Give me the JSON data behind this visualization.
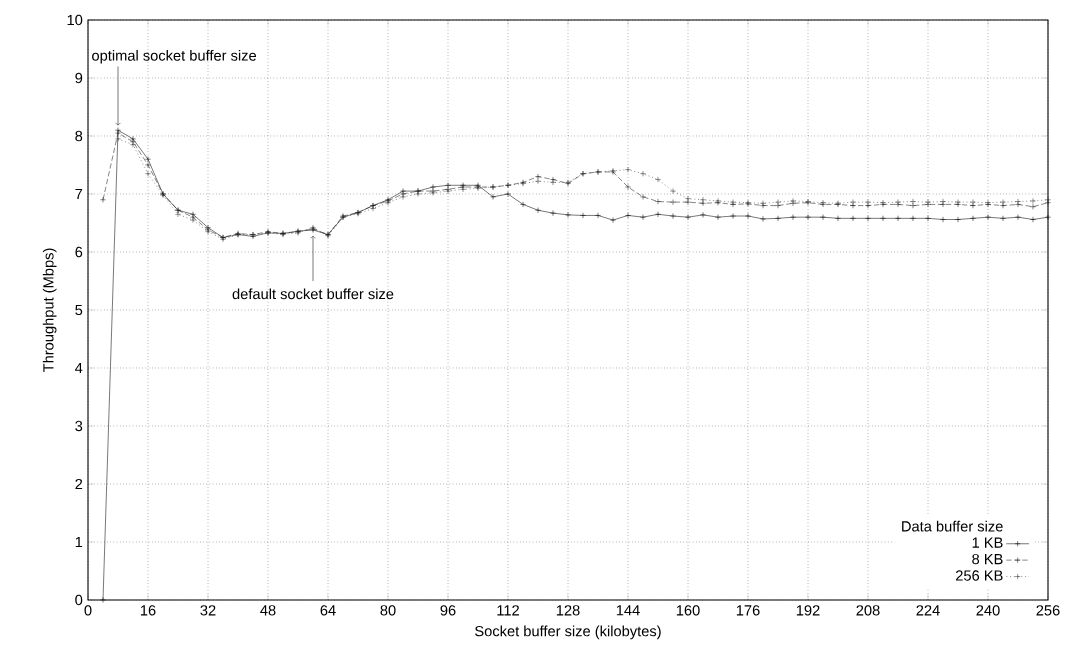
{
  "chart_data": {
    "type": "line",
    "xlabel": "Socket buffer size (kilobytes)",
    "ylabel": "Throughput (Mbps)",
    "legend_title": "Data buffer size",
    "x": [
      4,
      8,
      12,
      16,
      20,
      24,
      28,
      32,
      36,
      40,
      44,
      48,
      52,
      56,
      60,
      64,
      68,
      72,
      76,
      80,
      84,
      88,
      92,
      96,
      100,
      104,
      108,
      112,
      116,
      120,
      124,
      128,
      132,
      136,
      140,
      144,
      148,
      152,
      156,
      160,
      164,
      168,
      172,
      176,
      180,
      184,
      188,
      192,
      196,
      200,
      204,
      208,
      212,
      216,
      220,
      224,
      228,
      232,
      236,
      240,
      244,
      248,
      252,
      256
    ],
    "series": [
      {
        "name": "1 KB",
        "color": "#000000",
        "line_style": "solid",
        "values": [
          0,
          8.1,
          7.95,
          7.6,
          7.0,
          6.72,
          6.65,
          6.42,
          6.25,
          6.3,
          6.27,
          6.33,
          6.32,
          6.36,
          6.38,
          6.3,
          6.6,
          6.68,
          6.8,
          6.9,
          7.05,
          7.05,
          7.12,
          7.15,
          7.15,
          7.15,
          6.95,
          7.0,
          6.82,
          6.72,
          6.67,
          6.64,
          6.63,
          6.63,
          6.55,
          6.63,
          6.6,
          6.65,
          6.62,
          6.6,
          6.64,
          6.6,
          6.62,
          6.62,
          6.57,
          6.58,
          6.6,
          6.6,
          6.6,
          6.58,
          6.58,
          6.58,
          6.58,
          6.58,
          6.58,
          6.58,
          6.56,
          6.56,
          6.58,
          6.6,
          6.58,
          6.6,
          6.56,
          6.6
        ]
      },
      {
        "name": "8 KB",
        "color": "#1a1a1a",
        "line_style": "dashed",
        "values": [
          6.9,
          8.05,
          7.9,
          7.5,
          7.0,
          6.72,
          6.6,
          6.38,
          6.25,
          6.32,
          6.3,
          6.35,
          6.32,
          6.35,
          6.4,
          6.3,
          6.62,
          6.68,
          6.8,
          6.88,
          7.0,
          7.05,
          7.05,
          7.08,
          7.12,
          7.12,
          7.12,
          7.15,
          7.2,
          7.3,
          7.25,
          7.18,
          7.35,
          7.38,
          7.38,
          7.12,
          6.95,
          6.87,
          6.86,
          6.86,
          6.84,
          6.85,
          6.82,
          6.83,
          6.8,
          6.8,
          6.84,
          6.85,
          6.82,
          6.82,
          6.8,
          6.8,
          6.82,
          6.82,
          6.8,
          6.82,
          6.82,
          6.82,
          6.8,
          6.82,
          6.8,
          6.82,
          6.78,
          6.85
        ]
      },
      {
        "name": "256 KB",
        "color": "#333333",
        "line_style": "dotted",
        "values": [
          null,
          7.95,
          7.85,
          7.35,
          6.98,
          6.65,
          6.55,
          6.35,
          6.22,
          6.3,
          6.3,
          6.33,
          6.3,
          6.33,
          6.42,
          6.28,
          6.6,
          6.66,
          6.75,
          6.85,
          6.95,
          7.0,
          7.02,
          7.05,
          7.08,
          7.1,
          7.12,
          7.15,
          7.18,
          7.22,
          7.2,
          7.2,
          7.35,
          7.38,
          7.4,
          7.42,
          7.35,
          7.25,
          7.05,
          6.92,
          6.9,
          6.88,
          6.86,
          6.85,
          6.84,
          6.86,
          6.88,
          6.87,
          6.85,
          6.84,
          6.86,
          6.86,
          6.85,
          6.86,
          6.87,
          6.86,
          6.87,
          6.86,
          6.86,
          6.85,
          6.86,
          6.87,
          6.88,
          6.9
        ]
      }
    ],
    "annotations": [
      {
        "text": "optimal socket buffer size",
        "x": 8,
        "y": 8.1
      },
      {
        "text": "default socket buffer size",
        "x": 60,
        "y": 6.4
      }
    ],
    "xlim": [
      0,
      256
    ],
    "xticks": [
      0,
      16,
      32,
      48,
      64,
      80,
      96,
      112,
      128,
      144,
      160,
      176,
      192,
      208,
      224,
      240,
      256
    ],
    "ylim": [
      0,
      10
    ],
    "yticks": [
      0,
      1,
      2,
      3,
      4,
      5,
      6,
      7,
      8,
      9,
      10
    ],
    "grid": true,
    "legend": "bottom right",
    "marker": "cross"
  }
}
